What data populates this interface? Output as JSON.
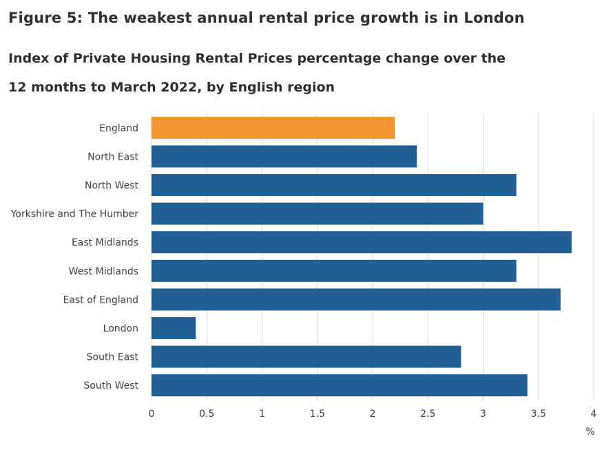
{
  "header": {
    "title": "Figure 5: The weakest annual rental price growth is in London",
    "subtitle": "Index of Private Housing Rental Prices percentage change over the 12 months to March 2022, by English region"
  },
  "colors": {
    "highlight": "#f39431",
    "bar": "#206095",
    "grid": "#d9d9d9",
    "text": "#414042"
  },
  "chart_data": {
    "type": "bar",
    "orientation": "horizontal",
    "title": "Figure 5: The weakest annual rental price growth is in London",
    "subtitle": "Index of Private Housing Rental Prices percentage change over the 12 months to March 2022, by English region",
    "categories": [
      "England",
      "North East",
      "North West",
      "Yorkshire and The Humber",
      "East Midlands",
      "West Midlands",
      "East of England",
      "London",
      "South East",
      "South West"
    ],
    "values": [
      2.2,
      2.4,
      3.3,
      3.0,
      3.8,
      3.3,
      3.7,
      0.4,
      2.8,
      3.4
    ],
    "highlight_category": "England",
    "xlim": [
      0,
      4
    ],
    "xticks": [
      0,
      0.5,
      1,
      1.5,
      2,
      2.5,
      3,
      3.5,
      4
    ],
    "xtick_labels": [
      "0",
      "0.5",
      "1",
      "1.5",
      "2",
      "2.5",
      "3",
      "3.5",
      "4"
    ],
    "xlabel": "%",
    "ylabel": "",
    "grid": true,
    "legend": "none"
  }
}
